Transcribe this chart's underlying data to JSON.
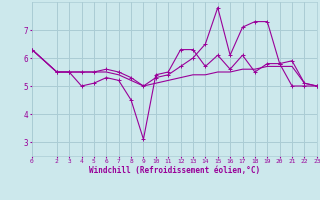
{
  "background_color": "#cce8ec",
  "grid_color": "#aaccd4",
  "line_color": "#990099",
  "xlabel": "Windchill (Refroidissement éolien,°C)",
  "xlabel_color": "#990099",
  "tick_color": "#990099",
  "xlim": [
    0,
    23
  ],
  "ylim": [
    2.5,
    8.0
  ],
  "yticks": [
    3,
    4,
    5,
    6,
    7
  ],
  "xticks": [
    0,
    2,
    3,
    4,
    5,
    6,
    7,
    8,
    9,
    10,
    11,
    12,
    13,
    14,
    15,
    16,
    17,
    18,
    19,
    20,
    21,
    22,
    23
  ],
  "line1_x": [
    0,
    2,
    3,
    4,
    5,
    6,
    7,
    8,
    9,
    10,
    11,
    12,
    13,
    14,
    15,
    16,
    17,
    18,
    19,
    20,
    21,
    22,
    23
  ],
  "line1_y": [
    6.3,
    5.5,
    5.5,
    5.0,
    5.1,
    5.3,
    5.2,
    4.5,
    3.1,
    5.4,
    5.5,
    6.3,
    6.3,
    5.7,
    6.1,
    5.6,
    6.1,
    5.5,
    5.8,
    5.8,
    5.9,
    5.1,
    5.0
  ],
  "line2_x": [
    0,
    2,
    3,
    4,
    5,
    6,
    7,
    8,
    9,
    10,
    11,
    12,
    13,
    14,
    15,
    16,
    17,
    18,
    19,
    20,
    21,
    22,
    23
  ],
  "line2_y": [
    6.3,
    5.5,
    5.5,
    5.5,
    5.5,
    5.5,
    5.4,
    5.2,
    5.0,
    5.1,
    5.2,
    5.3,
    5.4,
    5.4,
    5.5,
    5.5,
    5.6,
    5.6,
    5.7,
    5.7,
    5.7,
    5.1,
    5.0
  ],
  "line3_x": [
    0,
    2,
    3,
    4,
    5,
    6,
    7,
    8,
    9,
    10,
    11,
    12,
    13,
    14,
    15,
    16,
    17,
    18,
    19,
    20,
    21,
    22,
    23
  ],
  "line3_y": [
    6.3,
    5.5,
    5.5,
    5.5,
    5.5,
    5.6,
    5.5,
    5.3,
    5.0,
    5.3,
    5.4,
    5.7,
    6.0,
    6.5,
    7.8,
    6.1,
    7.1,
    7.3,
    7.3,
    5.8,
    5.0,
    5.0,
    5.0
  ]
}
